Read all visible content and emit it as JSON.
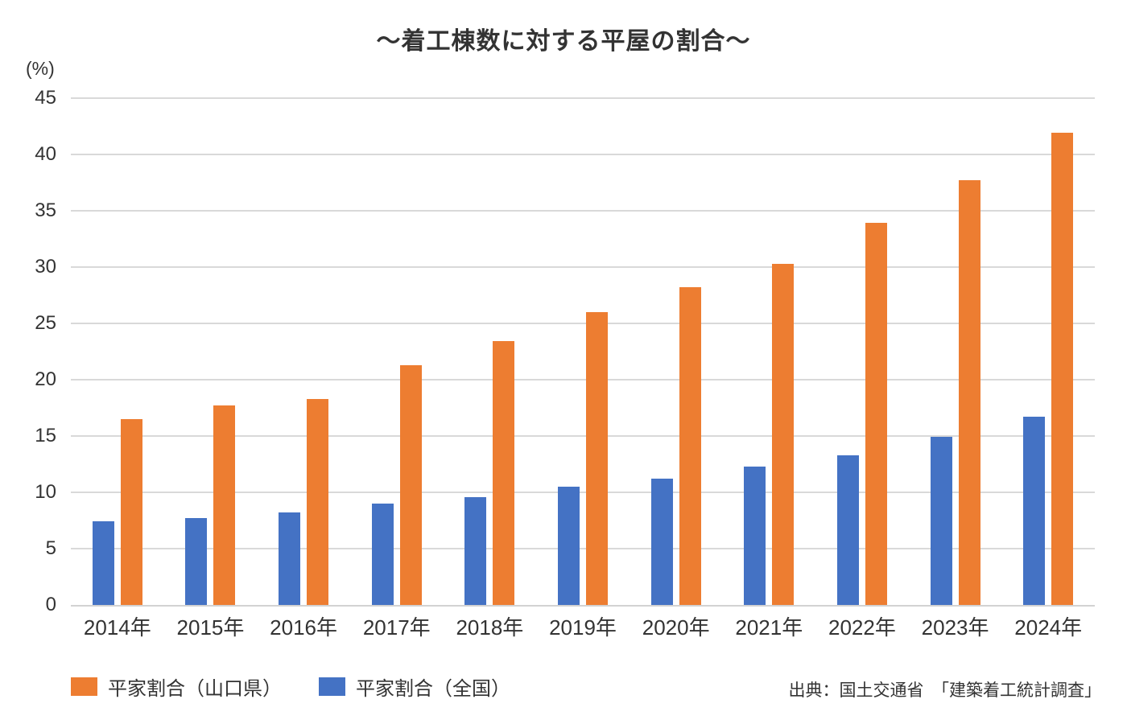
{
  "chart": {
    "title": "～着工棟数に対する平屋の割合～",
    "y_axis_unit": "(%)",
    "source": "出典：国土交通省　「建築着工統計調査」"
  },
  "chart_data": {
    "type": "bar",
    "title": "～着工棟数に対する平屋の割合～",
    "categories": [
      "2014年",
      "2015年",
      "2016年",
      "2017年",
      "2018年",
      "2019年",
      "2020年",
      "2021年",
      "2022年",
      "2023年",
      "2024年"
    ],
    "series": [
      {
        "name": "平家割合（山口県）",
        "color": "#ED7D31",
        "values": [
          16.5,
          17.7,
          18.3,
          21.3,
          23.4,
          26.0,
          28.2,
          30.3,
          33.9,
          37.7,
          41.9
        ]
      },
      {
        "name": "平家割合（全国）",
        "color": "#4472C4",
        "values": [
          7.4,
          7.7,
          8.2,
          9.0,
          9.6,
          10.5,
          11.2,
          12.3,
          13.3,
          14.9,
          16.7
        ]
      }
    ],
    "pair_draw_order": [
      1,
      0
    ],
    "xlabel": "",
    "ylabel": "(%)",
    "ylim": [
      0,
      45
    ],
    "yticks": [
      0,
      5,
      10,
      15,
      20,
      25,
      30,
      35,
      40,
      45
    ],
    "grid": "horizontal",
    "legend_position": "bottom-left",
    "source": "出典：国土交通省　「建築着工統計調査」"
  },
  "colors": {
    "yamaguchi_orange": "#ED7D31",
    "national_blue": "#4472C4",
    "gridline": "#D9D9D9",
    "axis_line": "#D2D2D2",
    "text": "#333333"
  }
}
